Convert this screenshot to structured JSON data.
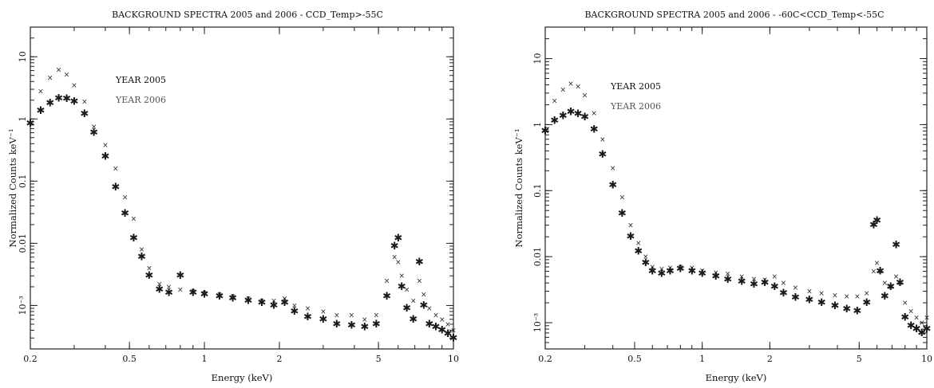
{
  "chart_data": [
    {
      "type": "scatter",
      "title": "BACKGROUND SPECTRA 2005 and 2006 - CCD_Temp>-55C",
      "xlabel": "Energy (keV)",
      "ylabel": "Normalized Counts keV⁻¹",
      "xscale": "log",
      "yscale": "log",
      "xlim": [
        0.2,
        10
      ],
      "ylim": [
        0.0002,
        30
      ],
      "xticks": [
        0.2,
        0.5,
        1,
        2,
        5,
        10
      ],
      "xtick_labels": [
        "0.2",
        "0.5",
        "1",
        "2",
        "5",
        "10"
      ],
      "yticks": [
        0.001,
        0.01,
        0.1,
        1,
        10
      ],
      "ytick_labels": [
        "10⁻³",
        "0.01",
        "0.1",
        "1",
        "10"
      ],
      "grid": false,
      "legend_position": "top-left",
      "series": [
        {
          "name": "YEAR 2005",
          "marker": "star",
          "x": [
            0.2,
            0.22,
            0.24,
            0.26,
            0.28,
            0.3,
            0.33,
            0.36,
            0.4,
            0.44,
            0.48,
            0.52,
            0.56,
            0.6,
            0.66,
            0.72,
            0.8,
            0.9,
            1.0,
            1.15,
            1.3,
            1.5,
            1.7,
            1.9,
            2.1,
            2.3,
            2.6,
            3.0,
            3.4,
            3.9,
            4.4,
            4.9,
            5.4,
            5.8,
            6.0,
            6.2,
            6.5,
            6.9,
            7.3,
            7.6,
            8.0,
            8.5,
            9.0,
            9.5,
            10.0
          ],
          "y": [
            0.85,
            1.35,
            1.8,
            2.15,
            2.1,
            1.9,
            1.2,
            0.6,
            0.25,
            0.08,
            0.03,
            0.012,
            0.006,
            0.003,
            0.0018,
            0.0016,
            0.003,
            0.0016,
            0.0015,
            0.0014,
            0.0013,
            0.0012,
            0.0011,
            0.001,
            0.0011,
            0.0008,
            0.00065,
            0.0006,
            0.0005,
            0.00048,
            0.00045,
            0.0005,
            0.0014,
            0.009,
            0.012,
            0.002,
            0.0009,
            0.0006,
            0.005,
            0.001,
            0.0005,
            0.00045,
            0.0004,
            0.00035,
            0.0003
          ]
        },
        {
          "name": "YEAR 2006",
          "marker": "cross",
          "x": [
            0.22,
            0.24,
            0.26,
            0.28,
            0.3,
            0.33,
            0.36,
            0.4,
            0.44,
            0.48,
            0.52,
            0.56,
            0.6,
            0.66,
            0.72,
            0.8,
            0.9,
            1.0,
            1.15,
            1.3,
            1.5,
            1.7,
            1.9,
            2.1,
            2.3,
            2.6,
            3.0,
            3.4,
            3.9,
            4.4,
            4.9,
            5.4,
            5.8,
            6.0,
            6.2,
            6.5,
            6.9,
            7.3,
            7.6,
            8.0,
            8.5,
            9.0,
            9.5,
            10.0
          ],
          "y": [
            2.8,
            4.6,
            6.2,
            5.2,
            3.5,
            1.9,
            0.75,
            0.38,
            0.16,
            0.055,
            0.025,
            0.008,
            0.004,
            0.0022,
            0.002,
            0.0018,
            0.0017,
            0.0016,
            0.0015,
            0.0014,
            0.0013,
            0.0012,
            0.0012,
            0.0013,
            0.001,
            0.0009,
            0.0008,
            0.0007,
            0.0007,
            0.0006,
            0.0007,
            0.0025,
            0.006,
            0.005,
            0.003,
            0.0018,
            0.0012,
            0.0025,
            0.0015,
            0.0009,
            0.0007,
            0.0006,
            0.0005,
            0.0004
          ]
        }
      ]
    },
    {
      "type": "scatter",
      "title": "BACKGROUND SPECTRA 2005 and 2006 - -60C<CCD_Temp<-55C",
      "xlabel": "Energy (keV)",
      "ylabel": "Normalized Counts keV⁻¹",
      "xscale": "log",
      "yscale": "log",
      "xlim": [
        0.2,
        10
      ],
      "ylim": [
        0.0004,
        30
      ],
      "xticks": [
        0.2,
        0.5,
        1,
        2,
        5,
        10
      ],
      "xtick_labels": [
        "0.2",
        "0.5",
        "1",
        "2",
        "5",
        "10"
      ],
      "yticks": [
        0.001,
        0.01,
        0.1,
        1,
        10
      ],
      "ytick_labels": [
        "10⁻³",
        "0.01",
        "0.1",
        "1",
        "10"
      ],
      "grid": false,
      "legend_position": "top-left",
      "series": [
        {
          "name": "YEAR 2005",
          "marker": "star",
          "x": [
            0.2,
            0.22,
            0.24,
            0.26,
            0.28,
            0.3,
            0.33,
            0.36,
            0.4,
            0.44,
            0.48,
            0.52,
            0.56,
            0.6,
            0.66,
            0.72,
            0.8,
            0.9,
            1.0,
            1.15,
            1.3,
            1.5,
            1.7,
            1.9,
            2.1,
            2.3,
            2.6,
            3.0,
            3.4,
            3.9,
            4.4,
            4.9,
            5.4,
            5.8,
            6.0,
            6.2,
            6.5,
            6.9,
            7.3,
            7.6,
            8.0,
            8.5,
            9.0,
            9.5,
            10.0
          ],
          "y": [
            0.8,
            1.15,
            1.35,
            1.55,
            1.45,
            1.3,
            0.85,
            0.35,
            0.12,
            0.045,
            0.02,
            0.012,
            0.008,
            0.006,
            0.0055,
            0.006,
            0.0065,
            0.006,
            0.0055,
            0.005,
            0.0045,
            0.0042,
            0.0038,
            0.004,
            0.0035,
            0.0028,
            0.0024,
            0.0022,
            0.002,
            0.0018,
            0.0016,
            0.0015,
            0.002,
            0.03,
            0.035,
            0.006,
            0.0025,
            0.0035,
            0.015,
            0.004,
            0.0012,
            0.0009,
            0.0008,
            0.0007,
            0.0008
          ]
        },
        {
          "name": "YEAR 2006",
          "marker": "cross",
          "x": [
            0.22,
            0.24,
            0.26,
            0.28,
            0.3,
            0.33,
            0.36,
            0.4,
            0.44,
            0.48,
            0.52,
            0.56,
            0.6,
            0.66,
            0.72,
            0.8,
            0.9,
            1.0,
            1.15,
            1.3,
            1.5,
            1.7,
            1.9,
            2.1,
            2.3,
            2.6,
            3.0,
            3.4,
            3.9,
            4.4,
            4.9,
            5.4,
            5.8,
            6.0,
            6.2,
            6.5,
            6.9,
            7.3,
            7.6,
            8.0,
            8.5,
            9.0,
            9.5,
            10.0
          ],
          "y": [
            2.3,
            3.4,
            4.2,
            3.8,
            2.8,
            1.5,
            0.6,
            0.22,
            0.08,
            0.03,
            0.016,
            0.01,
            0.007,
            0.0065,
            0.0068,
            0.007,
            0.0068,
            0.0062,
            0.0058,
            0.0055,
            0.005,
            0.0046,
            0.0045,
            0.005,
            0.004,
            0.0034,
            0.003,
            0.0028,
            0.0026,
            0.0025,
            0.0025,
            0.0028,
            0.006,
            0.008,
            0.006,
            0.004,
            0.0035,
            0.005,
            0.004,
            0.002,
            0.0015,
            0.0012,
            0.001,
            0.0012
          ]
        }
      ]
    }
  ]
}
